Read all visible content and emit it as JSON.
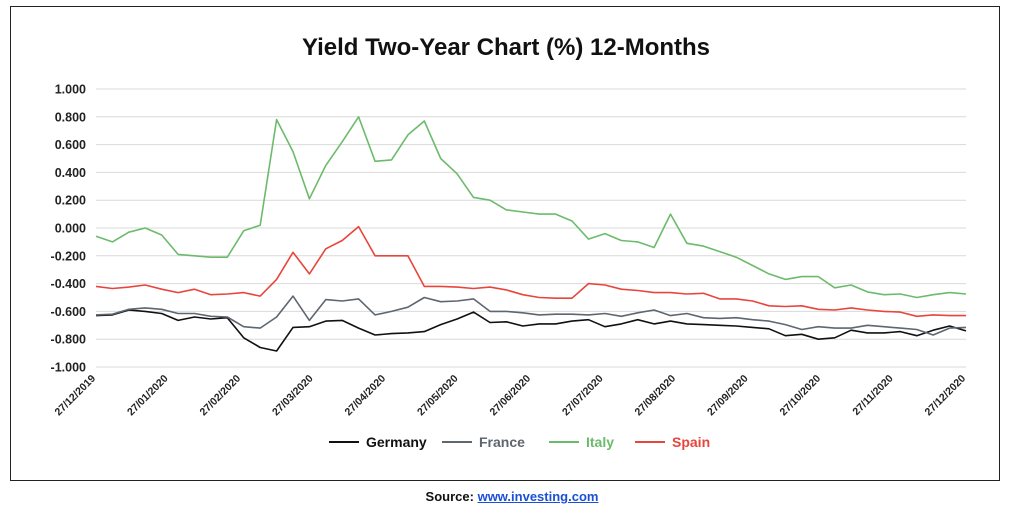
{
  "source": {
    "label": "Source:",
    "link": "www.investing.com"
  },
  "chart_data": {
    "type": "line",
    "title": "Yield Two-Year Chart (%) 12-Months",
    "xlabel": "",
    "ylabel": "",
    "ylim": [
      -1.0,
      1.0
    ],
    "y_ticks": [
      "1.000",
      "0.800",
      "0.600",
      "0.400",
      "0.200",
      "0.000",
      "-0.200",
      "-0.400",
      "-0.600",
      "-0.800",
      "-1.000"
    ],
    "y_tick_values": [
      1.0,
      0.8,
      0.6,
      0.4,
      0.2,
      0.0,
      -0.2,
      -0.4,
      -0.6,
      -0.8,
      -1.0
    ],
    "x_tick_labels": [
      "27/12/2019",
      "27/01/2020",
      "27/02/2020",
      "27/03/2020",
      "27/04/2020",
      "27/05/2020",
      "27/06/2020",
      "27/07/2020",
      "27/08/2020",
      "27/09/2020",
      "27/10/2020",
      "27/11/2020",
      "27/12/2020"
    ],
    "grid": "horizontal",
    "legend_position": "bottom",
    "series": [
      {
        "name": "Germany",
        "color": "#111111",
        "values": [
          -0.63,
          -0.625,
          -0.59,
          -0.6,
          -0.615,
          -0.665,
          -0.64,
          -0.655,
          -0.645,
          -0.79,
          -0.86,
          -0.885,
          -0.715,
          -0.71,
          -0.67,
          -0.665,
          -0.72,
          -0.77,
          -0.76,
          -0.755,
          -0.745,
          -0.695,
          -0.655,
          -0.605,
          -0.68,
          -0.675,
          -0.705,
          -0.69,
          -0.69,
          -0.67,
          -0.66,
          -0.71,
          -0.69,
          -0.66,
          -0.69,
          -0.67,
          -0.69,
          -0.695,
          -0.7,
          -0.705,
          -0.715,
          -0.725,
          -0.775,
          -0.765,
          -0.8,
          -0.79,
          -0.735,
          -0.755,
          -0.755,
          -0.745,
          -0.775,
          -0.735,
          -0.705,
          -0.74
        ]
      },
      {
        "name": "France",
        "color": "#5e6670",
        "values": [
          -0.625,
          -0.62,
          -0.585,
          -0.575,
          -0.585,
          -0.615,
          -0.615,
          -0.635,
          -0.64,
          -0.71,
          -0.72,
          -0.64,
          -0.49,
          -0.665,
          -0.515,
          -0.525,
          -0.51,
          -0.625,
          -0.6,
          -0.57,
          -0.5,
          -0.53,
          -0.525,
          -0.51,
          -0.6,
          -0.6,
          -0.61,
          -0.625,
          -0.62,
          -0.62,
          -0.625,
          -0.615,
          -0.635,
          -0.61,
          -0.59,
          -0.63,
          -0.615,
          -0.645,
          -0.65,
          -0.645,
          -0.66,
          -0.67,
          -0.695,
          -0.73,
          -0.71,
          -0.72,
          -0.72,
          -0.7,
          -0.71,
          -0.72,
          -0.73,
          -0.77,
          -0.72,
          -0.715
        ]
      },
      {
        "name": "Italy",
        "color": "#6cbb6c",
        "values": [
          -0.06,
          -0.1,
          -0.03,
          0.0,
          -0.05,
          -0.19,
          -0.2,
          -0.21,
          -0.21,
          -0.02,
          0.02,
          0.78,
          0.55,
          0.21,
          0.45,
          0.62,
          0.8,
          0.48,
          0.49,
          0.67,
          0.77,
          0.5,
          0.39,
          0.22,
          0.2,
          0.13,
          0.115,
          0.1,
          0.1,
          0.05,
          -0.08,
          -0.04,
          -0.09,
          -0.1,
          -0.14,
          0.1,
          -0.11,
          -0.13,
          -0.17,
          -0.21,
          -0.27,
          -0.33,
          -0.37,
          -0.35,
          -0.35,
          -0.43,
          -0.41,
          -0.46,
          -0.48,
          -0.475,
          -0.5,
          -0.48,
          -0.465,
          -0.475
        ]
      },
      {
        "name": "Spain",
        "color": "#e8453c",
        "values": [
          -0.42,
          -0.435,
          -0.425,
          -0.41,
          -0.44,
          -0.465,
          -0.44,
          -0.48,
          -0.475,
          -0.465,
          -0.49,
          -0.37,
          -0.175,
          -0.33,
          -0.15,
          -0.09,
          0.01,
          -0.2,
          -0.2,
          -0.2,
          -0.42,
          -0.42,
          -0.425,
          -0.435,
          -0.425,
          -0.445,
          -0.48,
          -0.5,
          -0.505,
          -0.505,
          -0.4,
          -0.41,
          -0.44,
          -0.45,
          -0.465,
          -0.465,
          -0.475,
          -0.47,
          -0.51,
          -0.51,
          -0.525,
          -0.56,
          -0.565,
          -0.56,
          -0.585,
          -0.59,
          -0.575,
          -0.59,
          -0.6,
          -0.605,
          -0.635,
          -0.625,
          -0.63,
          -0.63
        ]
      }
    ]
  }
}
